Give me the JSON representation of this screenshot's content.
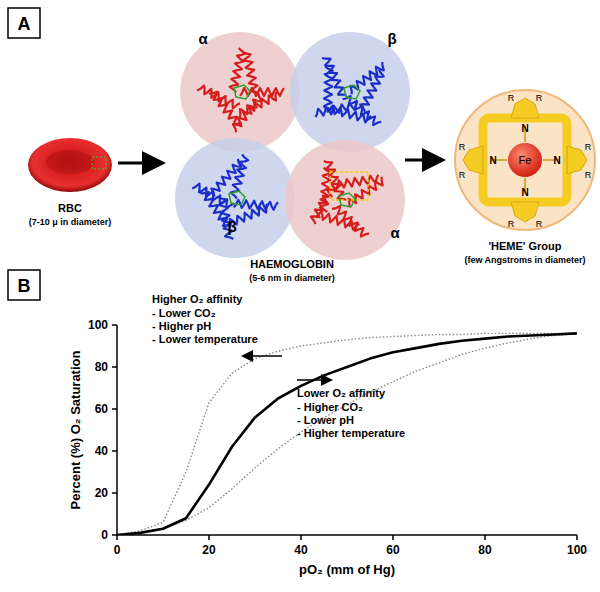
{
  "panel_a": {
    "label": "A",
    "rbc": {
      "label": "RBC",
      "size": "(7-10 μ in diameter)"
    },
    "haemoglobin": {
      "label": "HAEMOGLOBIN",
      "size": "(5-6 nm in diameter)",
      "subunits": [
        "α",
        "β",
        "β",
        "α"
      ]
    },
    "heme": {
      "label": "'HEME' Group",
      "size": "(few Angstroms in diameter)",
      "metal": "Fe",
      "nitrogen_labels": [
        "N",
        "N",
        "N",
        "N"
      ],
      "r_labels": [
        "R",
        "R",
        "R",
        "R",
        "R",
        "R",
        "R",
        "R"
      ]
    }
  },
  "panel_b_label": "B",
  "chart_data": {
    "type": "line",
    "x_label": "pO₂ (mm of Hg)",
    "y_label": "Percent (%) O₂ Saturation",
    "x": [
      0,
      5,
      10,
      15,
      20,
      25,
      30,
      35,
      40,
      45,
      50,
      55,
      60,
      65,
      70,
      75,
      80,
      85,
      90,
      95,
      100
    ],
    "series": [
      {
        "color": "#000000",
        "line_style": "solid",
        "values": [
          0,
          1,
          3,
          8,
          24,
          42,
          56,
          65,
          71,
          76,
          80,
          84,
          87,
          89,
          91,
          92.5,
          93.5,
          94.5,
          95,
          95.5,
          96
        ]
      },
      {
        "color": "#8a8a8a",
        "line_style": "dotted",
        "values": [
          0,
          2,
          6,
          30,
          63,
          77,
          84,
          87.5,
          90,
          91.5,
          93,
          94,
          94.5,
          95,
          95.5,
          95.5,
          96,
          96,
          96,
          96,
          96
        ]
      },
      {
        "color": "#8a8a8a",
        "line_style": "dotted",
        "values": [
          0,
          1,
          3,
          7,
          13,
          22,
          32,
          41,
          49,
          56,
          62,
          68,
          73,
          78,
          82,
          86,
          89,
          91.5,
          93.5,
          95,
          96
        ]
      }
    ],
    "xlim": [
      0,
      100
    ],
    "ylim": [
      0,
      100
    ],
    "xticks": [
      0,
      20,
      40,
      60,
      80,
      100
    ],
    "yticks": [
      0,
      20,
      40,
      60,
      80,
      100
    ],
    "grid": false,
    "annotations": [
      {
        "title": "Higher O₂ affinity",
        "items": [
          "- Lower CO₂",
          "- Higher pH",
          "- Lower temperature"
        ]
      },
      {
        "title": "Lower O₂ affinity",
        "items": [
          "- Higher CO₂",
          "- Lower pH",
          "- Higher temperature"
        ]
      }
    ]
  }
}
